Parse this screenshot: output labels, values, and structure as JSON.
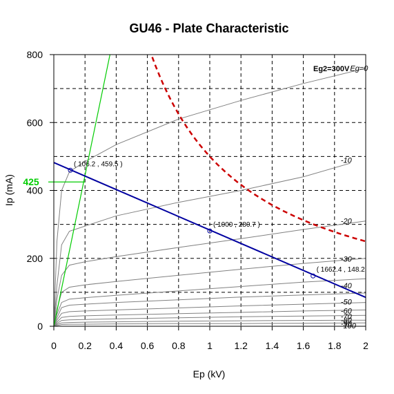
{
  "chart_data": {
    "type": "line",
    "title": "GU46 - Plate Characteristic",
    "xlabel": "Ep (kV)",
    "ylabel": "Ip (mA)",
    "xlim": [
      0,
      2
    ],
    "ylim": [
      0,
      800
    ],
    "x_ticks": [
      "0",
      "0.2",
      "0.4",
      "0.6",
      "0.8",
      "1",
      "1.2",
      "1.4",
      "1.6",
      "1.8",
      "2"
    ],
    "y_ticks": [
      "0",
      "200",
      "400",
      "600",
      "800"
    ],
    "grid": "dashed",
    "screen_grid_annotation": "Eg2=300V",
    "series": [
      {
        "name": "Eg=0",
        "x": [
          0,
          0.02,
          0.05,
          0.1,
          0.2,
          0.4,
          0.8,
          1.2,
          1.6,
          2.0
        ],
        "y": [
          0,
          250,
          400,
          455,
          485,
          535,
          610,
          665,
          715,
          760
        ]
      },
      {
        "name": "-10",
        "x": [
          0,
          0.02,
          0.05,
          0.1,
          0.2,
          0.4,
          0.8,
          1.2,
          1.6,
          1.9
        ],
        "y": [
          0,
          120,
          240,
          280,
          295,
          325,
          365,
          400,
          440,
          480
        ]
      },
      {
        "name": "-20",
        "x": [
          0,
          0.02,
          0.05,
          0.1,
          0.2,
          0.4,
          0.8,
          1.2,
          1.6,
          2.0
        ],
        "y": [
          0,
          80,
          150,
          180,
          190,
          205,
          232,
          258,
          285,
          310
        ]
      },
      {
        "name": "-30",
        "x": [
          0,
          0.02,
          0.05,
          0.1,
          0.2,
          0.4,
          0.8,
          1.2,
          1.6,
          2.0
        ],
        "y": [
          0,
          50,
          100,
          115,
          122,
          132,
          150,
          168,
          185,
          200
        ]
      },
      {
        "name": "-40",
        "x": [
          0,
          0.02,
          0.05,
          0.1,
          0.2,
          0.4,
          0.8,
          1.2,
          1.6,
          2.0
        ],
        "y": [
          0,
          35,
          70,
          80,
          84,
          91,
          104,
          117,
          130,
          140
        ]
      },
      {
        "name": "-50",
        "x": [
          0,
          0.02,
          0.05,
          0.1,
          0.2,
          0.4,
          0.8,
          1.2,
          1.6,
          2.0
        ],
        "y": [
          0,
          25,
          55,
          62,
          65,
          70,
          78,
          86,
          92,
          98
        ]
      },
      {
        "name": "-60",
        "x": [
          0,
          0.02,
          0.05,
          0.1,
          0.2,
          0.4,
          0.8,
          1.2,
          1.6,
          2.0
        ],
        "y": [
          0,
          18,
          38,
          43,
          45,
          48,
          54,
          60,
          65,
          70
        ]
      },
      {
        "name": "-70",
        "x": [
          0,
          0.02,
          0.05,
          0.1,
          0.2,
          0.4,
          0.8,
          1.2,
          1.6,
          2.0
        ],
        "y": [
          0,
          12,
          26,
          29,
          31,
          33,
          37,
          41,
          45,
          48
        ]
      },
      {
        "name": "-80",
        "x": [
          0,
          0.02,
          0.05,
          0.1,
          0.2,
          0.4,
          0.8,
          1.2,
          1.6,
          2.0
        ],
        "y": [
          0,
          8,
          17,
          19,
          20,
          22,
          25,
          28,
          30,
          32
        ]
      },
      {
        "name": "-90",
        "x": [
          0,
          0.02,
          0.05,
          0.1,
          0.2,
          0.4,
          0.8,
          1.2,
          1.6,
          2.0
        ],
        "y": [
          0,
          5,
          10,
          11,
          12,
          13,
          15,
          16,
          17,
          18
        ]
      },
      {
        "name": "-100",
        "x": [
          0,
          0.02,
          0.05,
          0.1,
          0.2,
          0.4,
          0.8,
          1.2,
          1.6,
          2.0
        ],
        "y": [
          0,
          2,
          5,
          6,
          6,
          7,
          8,
          8,
          9,
          10
        ]
      }
    ],
    "curve_labels": [
      {
        "text": "Eg=0",
        "x": 1.9,
        "y": 760
      },
      {
        "text": "-10",
        "x": 1.84,
        "y": 490
      },
      {
        "text": "-20",
        "x": 1.84,
        "y": 310
      },
      {
        "text": "-30",
        "x": 1.84,
        "y": 198
      },
      {
        "text": "-40",
        "x": 1.84,
        "y": 120
      },
      {
        "text": "-50",
        "x": 1.84,
        "y": 72
      },
      {
        "text": "-60",
        "x": 1.84,
        "y": 46
      },
      {
        "text": "-70",
        "x": 1.84,
        "y": 30
      },
      {
        "text": "-80",
        "x": 1.84,
        "y": 18
      },
      {
        "text": "-90",
        "x": 1.84,
        "y": 8
      },
      {
        "text": "-100",
        "x": 1.84,
        "y": 2
      }
    ],
    "load_line": {
      "x": [
        0,
        2
      ],
      "y": [
        482,
        85
      ],
      "color": "#0000a0"
    },
    "dissipation_curve": {
      "color": "#cc0000",
      "watts": 500
    },
    "green_line": {
      "x": [
        0,
        0.36
      ],
      "y": [
        0,
        800
      ],
      "color": "#00cc00"
    },
    "green_marker": {
      "label": "425",
      "value": 425,
      "x_end": 0.2,
      "color": "#00cc00"
    },
    "points": [
      {
        "label": "( 106.2 , 459.5 )",
        "x": 0.1062,
        "y": 459.5
      },
      {
        "label": "( 1000 , 280.7 )",
        "x": 1.0,
        "y": 280.7
      },
      {
        "label": "( 1662.4 , 148.2",
        "x": 1.6624,
        "y": 148.2
      }
    ]
  }
}
